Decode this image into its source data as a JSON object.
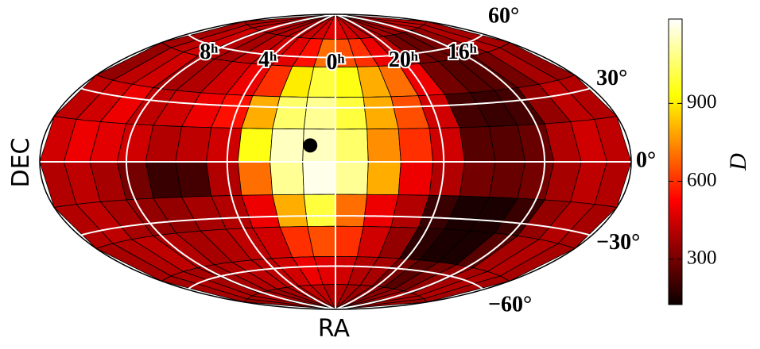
{
  "chart_data": {
    "type": "skymap",
    "xlabel": "RA",
    "ylabel": "DEC",
    "colorbar_label": "D",
    "xlim": [
      180,
      -180
    ],
    "ylim": [
      -90,
      90
    ],
    "xticks": [
      {
        "value": 120,
        "label": "8ʰ"
      },
      {
        "value": 60,
        "label": "4ʰ"
      },
      {
        "value": 0,
        "label": "0ʰ"
      },
      {
        "value": -60,
        "label": "20ʰ"
      },
      {
        "value": -120,
        "label": "16ʰ"
      }
    ],
    "yticks": [
      {
        "value": 60,
        "label": "60°"
      },
      {
        "value": 30,
        "label": "30°"
      },
      {
        "value": 0,
        "label": "0°"
      },
      {
        "value": -30,
        "label": "−30°"
      },
      {
        "value": -60,
        "label": "−60°"
      }
    ],
    "clim": [
      125,
      1225
    ],
    "cticks": [
      300,
      600,
      900
    ],
    "colormap": "hot",
    "grid": true,
    "marker": {
      "lon": 14,
      "lat": 9
    },
    "values": [
      [
        380,
        400,
        420,
        400,
        380,
        400,
        420,
        430,
        450,
        480,
        470,
        450,
        420,
        400,
        380,
        360,
        380,
        400,
        420,
        400
      ],
      [
        380,
        420,
        450,
        400,
        380,
        420,
        450,
        480,
        550,
        700,
        650,
        600,
        500,
        420,
        300,
        280,
        300,
        350,
        400,
        380
      ],
      [
        350,
        420,
        450,
        380,
        400,
        450,
        500,
        600,
        900,
        1000,
        950,
        800,
        700,
        500,
        300,
        250,
        250,
        300,
        380,
        350
      ],
      [
        420,
        450,
        500,
        420,
        450,
        500,
        550,
        800,
        1050,
        1100,
        1000,
        800,
        650,
        450,
        220,
        200,
        220,
        350,
        420,
        400
      ],
      [
        450,
        500,
        480,
        450,
        400,
        420,
        450,
        950,
        1150,
        1150,
        1050,
        750,
        600,
        450,
        250,
        250,
        280,
        400,
        450,
        420
      ],
      [
        400,
        420,
        380,
        300,
        200,
        220,
        400,
        700,
        1100,
        1200,
        1100,
        800,
        500,
        400,
        300,
        280,
        300,
        380,
        420,
        400
      ],
      [
        400,
        420,
        380,
        350,
        350,
        380,
        400,
        500,
        800,
        1000,
        700,
        500,
        400,
        200,
        150,
        150,
        200,
        350,
        400,
        380
      ],
      [
        380,
        400,
        420,
        400,
        380,
        400,
        420,
        450,
        600,
        650,
        600,
        450,
        350,
        180,
        150,
        150,
        250,
        380,
        400,
        380
      ],
      [
        380,
        400,
        380,
        380,
        400,
        420,
        420,
        450,
        500,
        480,
        450,
        400,
        380,
        300,
        250,
        300,
        350,
        380,
        400,
        380
      ],
      [
        350,
        380,
        400,
        380,
        360,
        380,
        400,
        420,
        420,
        400,
        400,
        380,
        360,
        350,
        340,
        350,
        360,
        380,
        380,
        360
      ]
    ]
  }
}
